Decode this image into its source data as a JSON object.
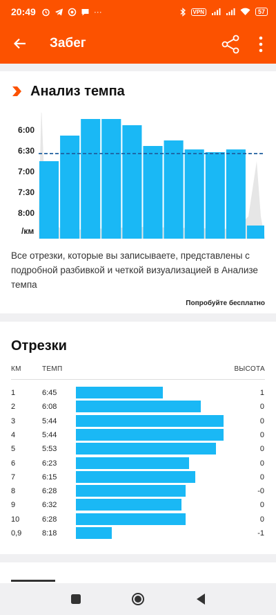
{
  "status_bar": {
    "time": "20:49",
    "vpn": "VPN",
    "battery": "57",
    "icons": [
      "alarm-icon",
      "telegram-icon",
      "whatsapp-icon",
      "chat-icon",
      "more-dots-icon",
      "bluetooth-icon",
      "signal-icon",
      "signal-icon",
      "wifi-icon"
    ]
  },
  "app_bar": {
    "title": "Забег",
    "background": "#fc5200"
  },
  "pace_analysis": {
    "title": "Анализ темпа",
    "y_ticks": [
      "6:00",
      "6:30",
      "7:00",
      "7:30",
      "8:00"
    ],
    "y_unit": "/км",
    "description": "Все отрезки, которые вы записываете, представлены с подробной разбивкой и четкой визуализацией в Анализе темпа",
    "cta": "Попробуйте бесплатно",
    "average_pace": "6:34"
  },
  "chart_data": {
    "type": "bar",
    "categories": [
      "1",
      "2",
      "3",
      "4",
      "5",
      "6",
      "7",
      "8",
      "9",
      "10",
      "0,9"
    ],
    "values": [
      "6:45",
      "6:08",
      "5:44",
      "5:44",
      "5:53",
      "6:23",
      "6:15",
      "6:28",
      "6:32",
      "6:28",
      "8:18"
    ],
    "values_seconds_per_km": [
      405,
      368,
      344,
      344,
      353,
      383,
      375,
      388,
      392,
      388,
      498
    ],
    "widths_km": [
      1,
      1,
      1,
      1,
      1,
      1,
      1,
      1,
      1,
      1,
      0.9
    ],
    "y_axis_reversed": true,
    "ylim_seconds": [
      330,
      510
    ],
    "average_line_seconds": 394,
    "bar_color": "#1ab8f5",
    "average_line_color": "#1f5f9e"
  },
  "splits": {
    "title": "Отрезки",
    "columns": {
      "km": "КМ",
      "pace": "ТЕМП",
      "elevation": "ВЫСОТА"
    },
    "rows": [
      {
        "km": "1",
        "pace": "6:45",
        "elev": "1",
        "bar": 0.46
      },
      {
        "km": "2",
        "pace": "6:08",
        "elev": "0",
        "bar": 0.66
      },
      {
        "km": "3",
        "pace": "5:44",
        "elev": "0",
        "bar": 0.78
      },
      {
        "km": "4",
        "pace": "5:44",
        "elev": "0",
        "bar": 0.78
      },
      {
        "km": "5",
        "pace": "5:53",
        "elev": "0",
        "bar": 0.74
      },
      {
        "km": "6",
        "pace": "6:23",
        "elev": "0",
        "bar": 0.6
      },
      {
        "km": "7",
        "pace": "6:15",
        "elev": "0",
        "bar": 0.63
      },
      {
        "km": "8",
        "pace": "6:28",
        "elev": "-0",
        "bar": 0.58
      },
      {
        "km": "9",
        "pace": "6:32",
        "elev": "0",
        "bar": 0.56
      },
      {
        "km": "10",
        "pace": "6:28",
        "elev": "0",
        "bar": 0.58
      },
      {
        "km": "0,9",
        "pace": "8:18",
        "elev": "-1",
        "bar": 0.19
      }
    ]
  },
  "nav_bar": {
    "buttons": [
      "recents-button",
      "home-button",
      "back-button"
    ]
  }
}
